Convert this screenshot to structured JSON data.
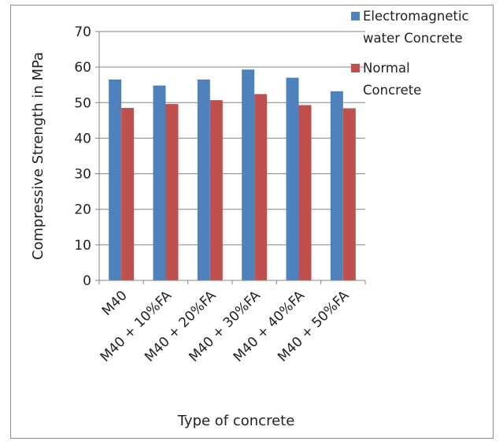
{
  "chart_data": {
    "type": "bar",
    "categories": [
      "M40",
      "M40 + 10%FA",
      "M40 + 20%FA",
      "M40 + 30%FA",
      "M40 + 40%FA",
      "M40 + 50%FA"
    ],
    "series": [
      {
        "name": "Electromagnetic water Concrete",
        "legend_lines": [
          "Electromagnetic",
          "water Concrete"
        ],
        "color": "#4f81bd",
        "values": [
          56.5,
          54.8,
          56.5,
          59.3,
          57.0,
          53.2
        ]
      },
      {
        "name": "Normal Concrete",
        "legend_lines": [
          "Normal",
          "Concrete"
        ],
        "color": "#c0504d",
        "values": [
          48.5,
          49.6,
          50.7,
          52.4,
          49.3,
          48.4
        ]
      }
    ],
    "xlabel": "Type of concrete",
    "ylabel": "Compressive Strength in MPa",
    "ylim": [
      0,
      70
    ],
    "yticks": [
      0,
      10,
      20,
      30,
      40,
      50,
      60,
      70
    ],
    "grid": true,
    "legend_position": "top-right"
  }
}
